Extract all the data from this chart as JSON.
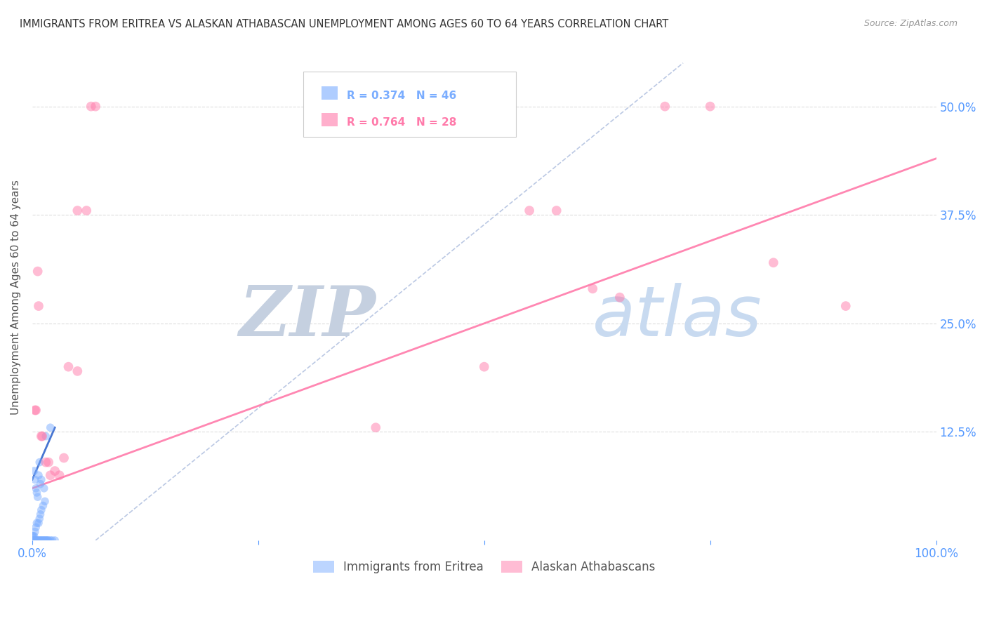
{
  "title": "IMMIGRANTS FROM ERITREA VS ALASKAN ATHABASCAN UNEMPLOYMENT AMONG AGES 60 TO 64 YEARS CORRELATION CHART",
  "source": "Source: ZipAtlas.com",
  "ylabel": "Unemployment Among Ages 60 to 64 years",
  "watermark": "ZIPatlas",
  "bottom_legend": [
    "Immigrants from Eritrea",
    "Alaskan Athabascans"
  ],
  "xlim": [
    0,
    1.0
  ],
  "ylim": [
    0,
    0.56
  ],
  "blue_color": "#7aadff",
  "pink_color": "#ff7aaa",
  "blue_line_color": "#3366cc",
  "blue_dashed_color": "#aabbdd",
  "watermark_color": "#ccd8ee",
  "grid_color": "#dddddd",
  "tick_color": "#5599ff",
  "title_color": "#333333",
  "source_color": "#999999",
  "blue_dots": [
    [
      0.002,
      0.0
    ],
    [
      0.003,
      0.0
    ],
    [
      0.004,
      0.0
    ],
    [
      0.005,
      0.0
    ],
    [
      0.006,
      0.0
    ],
    [
      0.007,
      0.0
    ],
    [
      0.008,
      0.0
    ],
    [
      0.009,
      0.0
    ],
    [
      0.01,
      0.0
    ],
    [
      0.011,
      0.0
    ],
    [
      0.012,
      0.0
    ],
    [
      0.013,
      0.0
    ],
    [
      0.014,
      0.0
    ],
    [
      0.015,
      0.0
    ],
    [
      0.016,
      0.0
    ],
    [
      0.017,
      0.0
    ],
    [
      0.018,
      0.0
    ],
    [
      0.02,
      0.0
    ],
    [
      0.022,
      0.0
    ],
    [
      0.025,
      0.0
    ],
    [
      0.0,
      0.0
    ],
    [
      0.001,
      0.0
    ],
    [
      0.0,
      0.005
    ],
    [
      0.001,
      0.005
    ],
    [
      0.002,
      0.005
    ],
    [
      0.003,
      0.01
    ],
    [
      0.004,
      0.015
    ],
    [
      0.005,
      0.02
    ],
    [
      0.007,
      0.02
    ],
    [
      0.008,
      0.025
    ],
    [
      0.009,
      0.03
    ],
    [
      0.01,
      0.035
    ],
    [
      0.012,
      0.04
    ],
    [
      0.014,
      0.045
    ],
    [
      0.002,
      0.08
    ],
    [
      0.003,
      0.07
    ],
    [
      0.004,
      0.06
    ],
    [
      0.005,
      0.055
    ],
    [
      0.006,
      0.05
    ],
    [
      0.007,
      0.075
    ],
    [
      0.008,
      0.09
    ],
    [
      0.009,
      0.065
    ],
    [
      0.01,
      0.07
    ],
    [
      0.013,
      0.06
    ],
    [
      0.015,
      0.12
    ],
    [
      0.02,
      0.13
    ]
  ],
  "pink_dots": [
    [
      0.003,
      0.15
    ],
    [
      0.004,
      0.15
    ],
    [
      0.006,
      0.31
    ],
    [
      0.007,
      0.27
    ],
    [
      0.01,
      0.12
    ],
    [
      0.011,
      0.12
    ],
    [
      0.015,
      0.09
    ],
    [
      0.018,
      0.09
    ],
    [
      0.02,
      0.075
    ],
    [
      0.025,
      0.08
    ],
    [
      0.03,
      0.075
    ],
    [
      0.035,
      0.095
    ],
    [
      0.04,
      0.2
    ],
    [
      0.05,
      0.195
    ],
    [
      0.05,
      0.38
    ],
    [
      0.06,
      0.38
    ],
    [
      0.065,
      0.5
    ],
    [
      0.07,
      0.5
    ],
    [
      0.38,
      0.13
    ],
    [
      0.5,
      0.2
    ],
    [
      0.55,
      0.38
    ],
    [
      0.58,
      0.38
    ],
    [
      0.62,
      0.29
    ],
    [
      0.65,
      0.28
    ],
    [
      0.7,
      0.5
    ],
    [
      0.75,
      0.5
    ],
    [
      0.82,
      0.32
    ],
    [
      0.9,
      0.27
    ]
  ],
  "blue_reg_line": {
    "x0": 0.0,
    "y0": 0.07,
    "x1": 0.025,
    "y1": 0.13
  },
  "pink_reg_line": {
    "x0": 0.0,
    "y0": 0.06,
    "x1": 1.0,
    "y1": 0.44
  },
  "blue_dashed_line": {
    "x0": 0.07,
    "y0": 0.0,
    "x1": 0.72,
    "y1": 0.55
  },
  "dot_size": 70,
  "dot_alpha": 0.5,
  "legend_r1": "R = 0.374   N = 46",
  "legend_r2": "R = 0.764   N = 28"
}
